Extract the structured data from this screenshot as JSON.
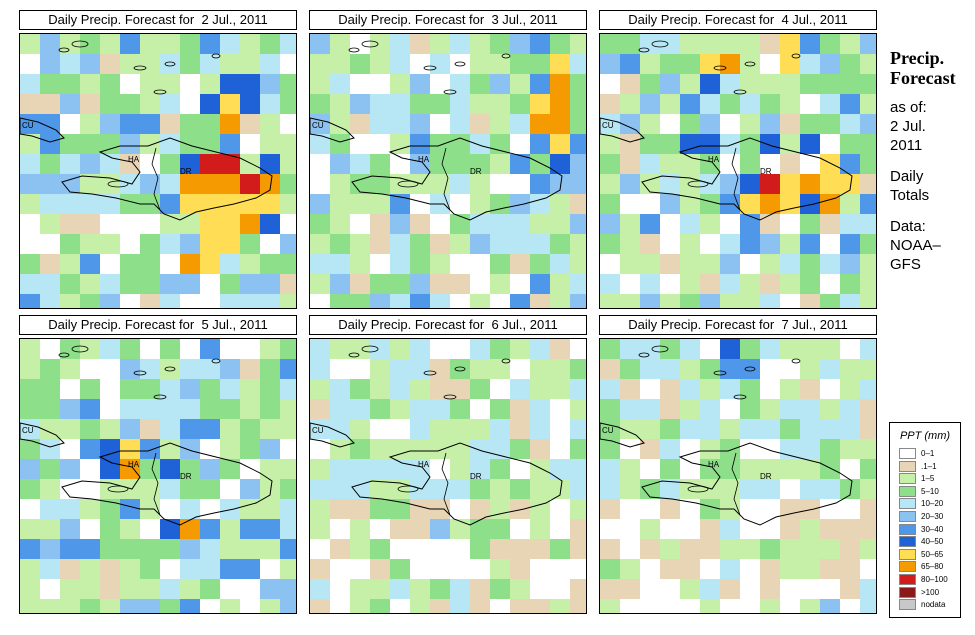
{
  "panels": [
    {
      "title": "Daily Precip. Forecast for  2 Jul., 2011",
      "seed": 3,
      "hot": [
        [
          9,
          6,
          "#d21c1c"
        ],
        [
          10,
          6,
          "#d21c1c"
        ],
        [
          11,
          7,
          "#d21c1c"
        ],
        [
          8,
          7,
          "#f59a00"
        ],
        [
          9,
          7,
          "#f59a00"
        ],
        [
          10,
          7,
          "#f59a00"
        ],
        [
          12,
          7,
          "#f59a00"
        ],
        [
          8,
          8,
          "#ffdd55"
        ],
        [
          9,
          8,
          "#ffdd55"
        ],
        [
          10,
          8,
          "#ffdd55"
        ],
        [
          11,
          8,
          "#ffdd55"
        ],
        [
          12,
          8,
          "#ffdd55"
        ],
        [
          9,
          9,
          "#ffdd55"
        ],
        [
          10,
          9,
          "#ffdd55"
        ],
        [
          11,
          9,
          "#f59a00"
        ],
        [
          9,
          10,
          "#ffdd55"
        ],
        [
          10,
          10,
          "#ffdd55"
        ],
        [
          8,
          11,
          "#f59a00"
        ],
        [
          9,
          11,
          "#ffdd55"
        ],
        [
          10,
          4,
          "#f59a00"
        ],
        [
          10,
          3,
          "#ffdd55"
        ],
        [
          9,
          3,
          "#1f62d8"
        ],
        [
          10,
          2,
          "#1f62d8"
        ],
        [
          11,
          2,
          "#1f62d8"
        ],
        [
          11,
          3,
          "#1f62d8"
        ],
        [
          12,
          6,
          "#1f62d8"
        ],
        [
          8,
          6,
          "#1f62d8"
        ],
        [
          12,
          9,
          "#1f62d8"
        ]
      ]
    },
    {
      "title": "Daily Precip. Forecast for  3 Jul., 2011",
      "seed": 11,
      "hot": [
        [
          12,
          1,
          "#ffdd55"
        ],
        [
          12,
          2,
          "#f59a00"
        ],
        [
          11,
          3,
          "#ffdd55"
        ],
        [
          12,
          3,
          "#f59a00"
        ],
        [
          11,
          4,
          "#f59a00"
        ],
        [
          12,
          4,
          "#f59a00"
        ],
        [
          12,
          5,
          "#ffdd55"
        ],
        [
          11,
          2,
          "#4f97e8"
        ],
        [
          11,
          5,
          "#4f97e8"
        ],
        [
          12,
          6,
          "#1f62d8"
        ],
        [
          10,
          6,
          "#4f97e8"
        ]
      ]
    },
    {
      "title": "Daily Precip. Forecast for  4 Jul., 2011",
      "seed": 19,
      "hot": [
        [
          5,
          1,
          "#ffdd55"
        ],
        [
          6,
          1,
          "#f59a00"
        ],
        [
          5,
          2,
          "#1f62d8"
        ],
        [
          9,
          0,
          "#ffdd55"
        ],
        [
          9,
          1,
          "#ffdd55"
        ],
        [
          7,
          7,
          "#1f62d8"
        ],
        [
          8,
          7,
          "#d21c1c"
        ],
        [
          9,
          7,
          "#ffdd55"
        ],
        [
          10,
          7,
          "#f59a00"
        ],
        [
          11,
          7,
          "#ffdd55"
        ],
        [
          12,
          7,
          "#ffdd55"
        ],
        [
          7,
          8,
          "#ffdd55"
        ],
        [
          8,
          8,
          "#f59a00"
        ],
        [
          9,
          8,
          "#ffdd55"
        ],
        [
          10,
          8,
          "#1f62d8"
        ],
        [
          11,
          8,
          "#f59a00"
        ],
        [
          8,
          5,
          "#1f62d8"
        ],
        [
          10,
          5,
          "#1f62d8"
        ],
        [
          11,
          6,
          "#ffdd55"
        ],
        [
          5,
          5,
          "#1f62d8"
        ],
        [
          4,
          5,
          "#1f62d8"
        ]
      ]
    },
    {
      "title": "Daily Precip. Forecast for  5 Jul., 2011",
      "seed": 27,
      "hot": [
        [
          5,
          5,
          "#ffdd55"
        ],
        [
          5,
          6,
          "#f59a00"
        ],
        [
          4,
          5,
          "#1f62d8"
        ],
        [
          4,
          6,
          "#1f62d8"
        ],
        [
          8,
          9,
          "#f59a00"
        ],
        [
          7,
          9,
          "#1f62d8"
        ],
        [
          9,
          9,
          "#4f97e8"
        ],
        [
          7,
          6,
          "#1f62d8"
        ],
        [
          8,
          4,
          "#4f97e8"
        ]
      ]
    },
    {
      "title": "Daily Precip. Forecast for  6 Jul., 2011",
      "seed": 35,
      "hot": []
    },
    {
      "title": "Daily Precip. Forecast for  7 Jul., 2011",
      "seed": 43,
      "hot": [
        [
          6,
          0,
          "#1f62d8"
        ],
        [
          6,
          1,
          "#4f97e8"
        ],
        [
          7,
          1,
          "#4f97e8"
        ]
      ]
    }
  ],
  "places": [
    {
      "label": "CU",
      "name": "label-cuba"
    },
    {
      "label": "HA",
      "name": "label-haiti"
    },
    {
      "label": "DR",
      "name": "label-dominican-republic"
    }
  ],
  "side": {
    "heading": "Precip. Forecast",
    "lines": [
      "as of:",
      "2 Jul.",
      "2011",
      "",
      "Daily",
      "Totals",
      "",
      "Data:",
      "NOAA–",
      "GFS"
    ]
  },
  "legend": {
    "title": "PPT (mm)",
    "classes": [
      {
        "label": "0–1",
        "color": "#ffffff"
      },
      {
        "label": ".1–1",
        "color": "#e8d5b5"
      },
      {
        "label": "1–5",
        "color": "#c6f0a8"
      },
      {
        "label": "5–10",
        "color": "#8ddf8a"
      },
      {
        "label": "10–20",
        "color": "#b7e7f5"
      },
      {
        "label": "20–30",
        "color": "#8cc2f2"
      },
      {
        "label": "30–40",
        "color": "#4f97e8"
      },
      {
        "label": "40–50",
        "color": "#1f62d8"
      },
      {
        "label": "50–65",
        "color": "#ffdd55"
      },
      {
        "label": "65–80",
        "color": "#f59a00"
      },
      {
        "label": "80–100",
        "color": "#d21c1c"
      },
      {
        "label": ">100",
        "color": "#8a1a1a"
      },
      {
        "label": "nodata",
        "color": "#c8c8c8"
      }
    ]
  }
}
